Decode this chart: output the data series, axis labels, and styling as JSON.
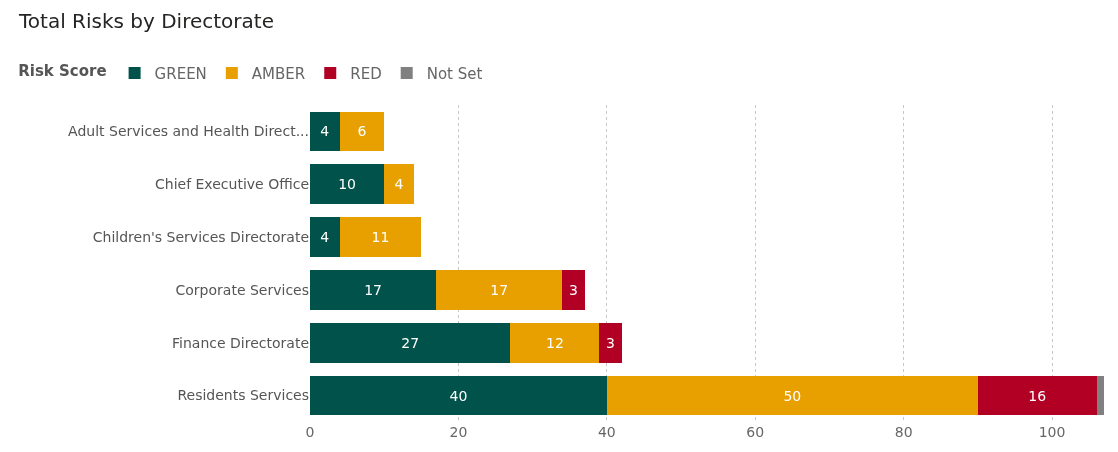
{
  "chart_data": {
    "type": "bar",
    "title": "Total Risks by Directorate",
    "legend_title": "Risk Score",
    "orientation": "horizontal",
    "stacked": true,
    "categories": [
      "Adult Services and Health Direct...",
      "Chief Executive Office",
      "Children's Services Directorate",
      "Corporate Services",
      "Finance Directorate",
      "Residents Services"
    ],
    "series": [
      {
        "name": "GREEN",
        "color": "#00524a",
        "values": [
          4,
          10,
          4,
          17,
          27,
          40
        ],
        "value_labels": [
          "4",
          "10",
          "4",
          "17",
          "27",
          "40"
        ]
      },
      {
        "name": "AMBER",
        "color": "#e8a000",
        "values": [
          6,
          4,
          11,
          17,
          12,
          50
        ],
        "value_labels": [
          "6",
          "4",
          "11",
          "17",
          "12",
          "50"
        ]
      },
      {
        "name": "RED",
        "color": "#b20024",
        "values": [
          null,
          null,
          null,
          3,
          3,
          16
        ],
        "value_labels": [
          null,
          null,
          null,
          "3",
          "3",
          "16"
        ]
      },
      {
        "name": "Not Set",
        "color": "#808080",
        "values": [
          null,
          null,
          null,
          null,
          null,
          1
        ],
        "value_labels": [
          null,
          null,
          null,
          null,
          null,
          null
        ]
      }
    ],
    "xlim": [
      0,
      107
    ],
    "xticks": [
      0,
      20,
      40,
      60,
      80,
      100
    ],
    "grid": "x",
    "legend": "top left"
  }
}
